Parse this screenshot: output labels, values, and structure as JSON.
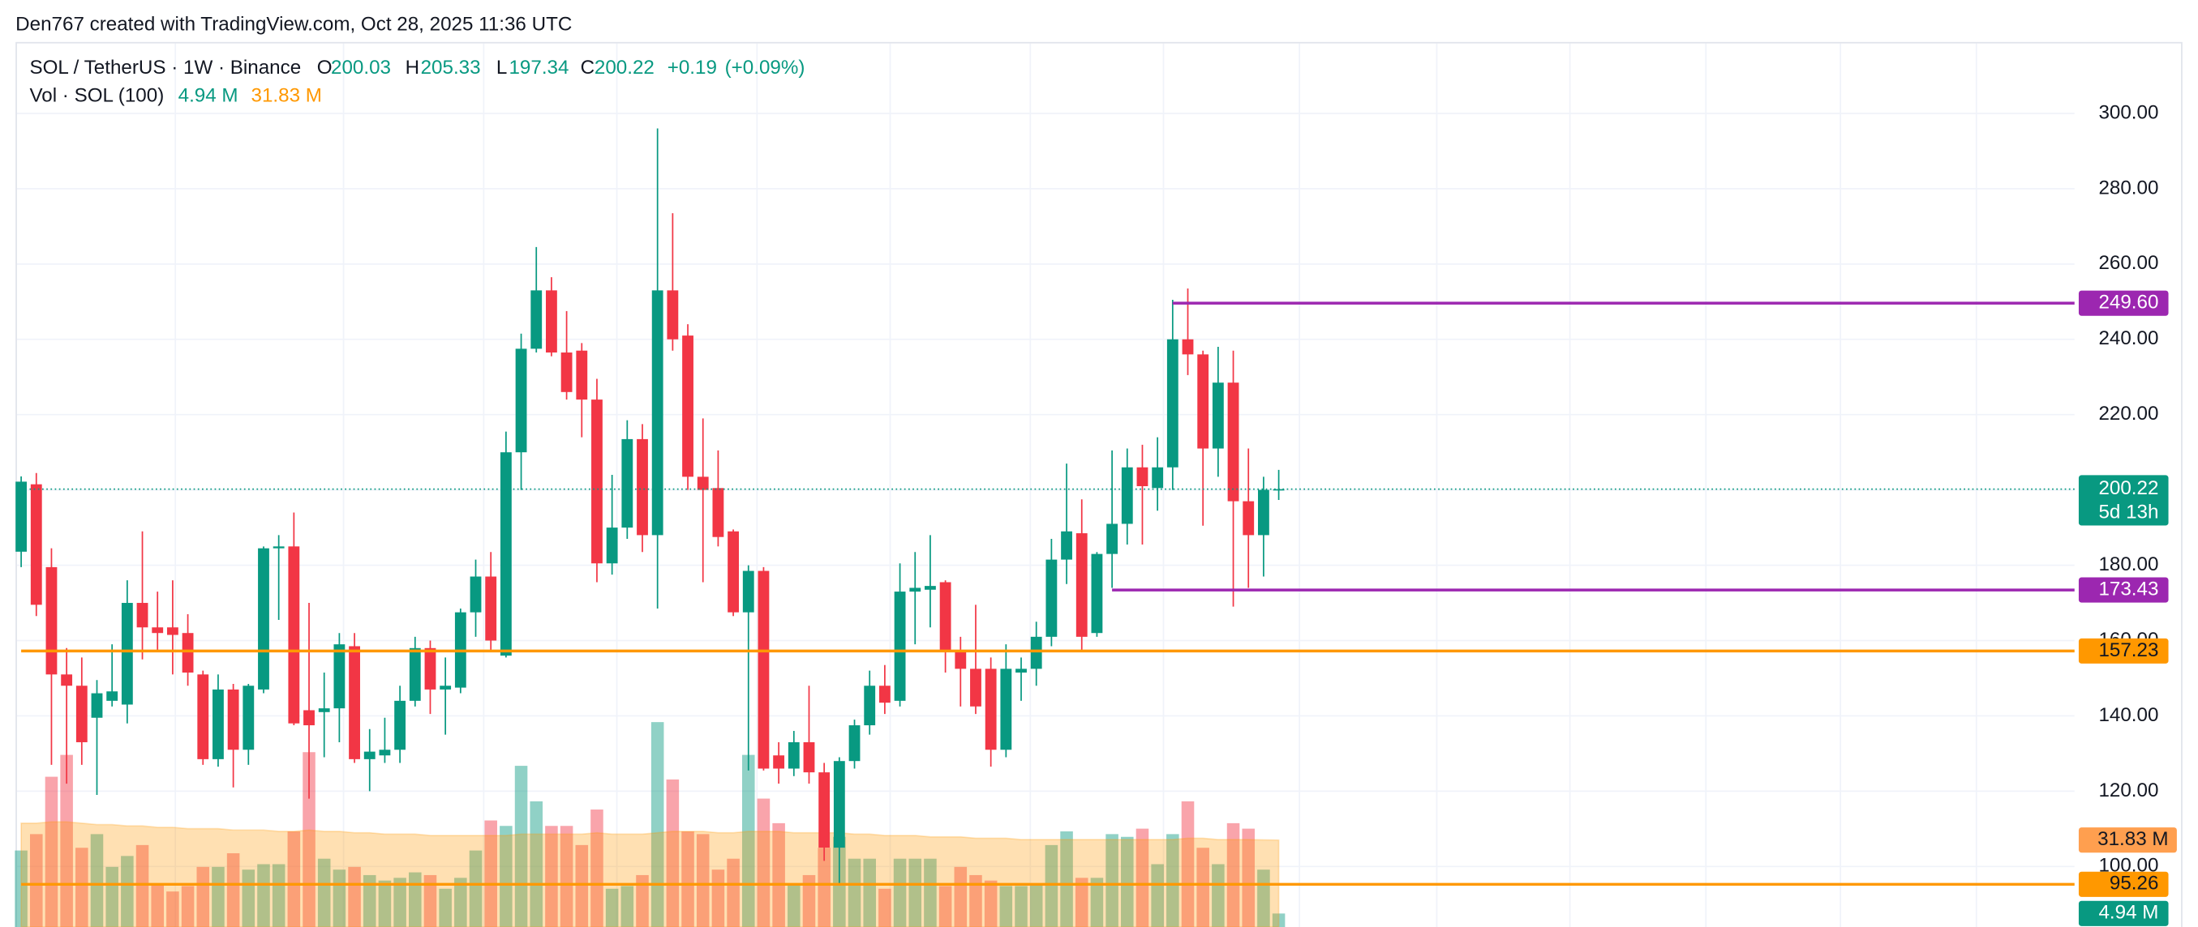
{
  "header": {
    "attribution": "Den767 created with TradingView.com, Oct 28, 2025 11:36 UTC"
  },
  "chart_data": {
    "type": "candlestick",
    "symbol": "SOL / TetherUS · 1W · Binance",
    "legend_fields": [
      {
        "name": "O",
        "value": 200.03
      },
      {
        "name": "H",
        "value": 205.33
      },
      {
        "name": "L",
        "value": 197.34
      },
      {
        "name": "C",
        "value": 200.22
      }
    ],
    "change": {
      "value": 0.19,
      "label": "+0.19"
    },
    "change_pct": {
      "value": 0.09,
      "label": "(+0.09%)"
    },
    "up_color": "#089981",
    "down_color": "#f23645",
    "open": [
      183.6,
      201.5,
      179.5,
      151,
      148,
      139.5,
      144,
      143,
      170,
      163.5,
      163.5,
      162,
      151,
      128.5,
      147,
      131,
      147,
      184.5,
      185,
      141.5,
      141,
      142,
      158.5,
      128.5,
      129.5,
      131,
      144,
      158,
      147,
      147.5,
      167.5,
      177,
      156,
      210,
      237.5,
      253,
      236.5,
      237,
      224,
      180.5,
      190,
      213.5,
      188,
      253,
      241,
      203.5,
      200.5,
      189,
      167.5,
      178.5,
      129.5,
      126,
      133,
      125,
      105,
      128,
      137.5,
      148,
      144,
      173,
      173.5,
      175.5,
      157.5,
      152.5,
      152.5,
      131,
      151.5,
      152.5,
      161,
      181.5,
      188.5,
      162,
      183,
      191,
      206,
      200.5,
      206,
      240,
      236,
      211,
      228.5,
      197,
      188,
      200.03
    ],
    "high": [
      203.6,
      204.5,
      184.5,
      158,
      155.5,
      149.5,
      159,
      176,
      189,
      173,
      176,
      167,
      152,
      151,
      148.5,
      148.5,
      185,
      188,
      194,
      170,
      151.5,
      162,
      162,
      136.5,
      139.5,
      148,
      161,
      160,
      155.5,
      168.5,
      181.5,
      183.5,
      215.5,
      241.5,
      264.5,
      256.5,
      247.5,
      239,
      229.5,
      204,
      218.5,
      217.5,
      296,
      273.5,
      244,
      219,
      210.5,
      189.5,
      180,
      179.5,
      133,
      136,
      148,
      127.5,
      129,
      139,
      152,
      153.5,
      180.5,
      183.5,
      188,
      176,
      161,
      169.5,
      155.5,
      159,
      155.5,
      165,
      187,
      207,
      197.5,
      183.5,
      210.5,
      211,
      212,
      214,
      250.5,
      253.5,
      237,
      238,
      237,
      211,
      203.5,
      205.33
    ],
    "low": [
      179.5,
      166.5,
      127,
      122,
      127,
      119,
      142.5,
      138,
      155,
      157,
      151,
      148,
      127,
      126.5,
      121,
      127,
      146,
      165.5,
      137.5,
      118,
      129,
      133,
      127.5,
      120,
      127.5,
      127.5,
      142.5,
      140.5,
      135,
      146,
      161,
      157.5,
      155.5,
      200,
      236.5,
      235.5,
      224,
      214,
      175.5,
      177.5,
      187,
      183.5,
      168.5,
      237,
      200,
      175.5,
      185,
      166.5,
      125.5,
      125.5,
      122,
      124,
      122,
      101.5,
      95,
      126,
      135,
      140.5,
      142.5,
      159,
      163.5,
      151.5,
      142.5,
      140.5,
      126.5,
      129,
      144,
      148,
      158.5,
      175,
      157.5,
      161,
      174,
      185.5,
      185.5,
      194.5,
      200,
      230.5,
      190.5,
      203.5,
      169,
      174,
      177,
      197.34
    ],
    "close": [
      202.2,
      169.5,
      151,
      148,
      133,
      146,
      146.5,
      170,
      163.5,
      162,
      161.5,
      151.5,
      128.5,
      147,
      131,
      148,
      184.5,
      185,
      138,
      137.5,
      142,
      159,
      128.5,
      130.5,
      131,
      144,
      158,
      147,
      148,
      167.5,
      177,
      160,
      210,
      237.5,
      253,
      236.5,
      226,
      224,
      180.5,
      190,
      213.5,
      188,
      253,
      240,
      203.5,
      200,
      187.5,
      167.5,
      178.5,
      126,
      126,
      133,
      125,
      105,
      128,
      137.5,
      148,
      143.5,
      173,
      174,
      174.5,
      157.5,
      152.5,
      142.5,
      131,
      152.5,
      152.5,
      161,
      181.5,
      189,
      161,
      183,
      191,
      206,
      201,
      206,
      240,
      236,
      211,
      228.5,
      197,
      188,
      200.03,
      200.22
    ],
    "ylim": [
      84,
      319
    ],
    "yticks": [
      {
        "value": 100,
        "label": "100.00"
      },
      {
        "value": 120,
        "label": "120.00"
      },
      {
        "value": 140,
        "label": "140.00"
      },
      {
        "value": 160,
        "label": "160.00"
      },
      {
        "value": 180,
        "label": "180.00"
      },
      {
        "value": 200,
        "label": "200.00"
      },
      {
        "value": 220,
        "label": "220.00"
      },
      {
        "value": 240,
        "label": "240.00"
      },
      {
        "value": 260,
        "label": "260.00"
      },
      {
        "value": 280,
        "label": "280.00"
      },
      {
        "value": 300,
        "label": "300.00"
      }
    ],
    "grid": true,
    "levels": [
      {
        "value": 249.6,
        "label": "249.60",
        "color": "#9c27b0",
        "start": 76
      },
      {
        "value": 173.43,
        "label": "173.43",
        "color": "#9c27b0",
        "start": 72
      },
      {
        "value": 157.23,
        "label": "157.23",
        "color": "#ff9800",
        "start": 0
      },
      {
        "value": 95.26,
        "label": "95.26",
        "color": "#ff9800",
        "start": 0
      }
    ],
    "last_price": {
      "value": 200.22,
      "label": "200.22",
      "countdown": "5d 13h"
    },
    "volume": {
      "name": "Vol · SOL (100)",
      "values": [
        28,
        34,
        55,
        63,
        29,
        34,
        22,
        26,
        30,
        16,
        13,
        15,
        22,
        22,
        27,
        21,
        23,
        23,
        35,
        64,
        25,
        21,
        22,
        19,
        17,
        18,
        20,
        19,
        14,
        18,
        28,
        39,
        37,
        59,
        46,
        37,
        37,
        30,
        43,
        14,
        15,
        19,
        75,
        54,
        35,
        34,
        21,
        25,
        63,
        47,
        38,
        16,
        19,
        29,
        33,
        25,
        25,
        14,
        25,
        25,
        25,
        15,
        22,
        19,
        17,
        15,
        15,
        16,
        30,
        35,
        18,
        18,
        34,
        33,
        36,
        23,
        34,
        46,
        29,
        23,
        38,
        36,
        21,
        4.94
      ],
      "ma": [
        38,
        38,
        38.5,
        38.5,
        38,
        37.5,
        37.5,
        37,
        37,
        36.5,
        36.5,
        36,
        36,
        36,
        35.5,
        35.5,
        35.5,
        35,
        35,
        35.5,
        35,
        35,
        34.5,
        34.5,
        34,
        34,
        34,
        33.5,
        33.5,
        33.5,
        33.5,
        33.5,
        33.5,
        34,
        34,
        34,
        34,
        34,
        34.5,
        34,
        34,
        34,
        34.5,
        35,
        35,
        35,
        34.5,
        34.5,
        35,
        35,
        35,
        34.5,
        34.5,
        34.5,
        34.5,
        34,
        34,
        33.5,
        33.5,
        33.5,
        33,
        33,
        33,
        32.5,
        32.5,
        32.5,
        32,
        32,
        32,
        32,
        32,
        32,
        32,
        32,
        32,
        32,
        32,
        32.5,
        32.5,
        32,
        32,
        32,
        31.9,
        31.83
      ],
      "ylim": [
        0,
        324
      ],
      "last": {
        "value": 4.94,
        "label": "4.94 M"
      },
      "ma_last": {
        "value": 31.83,
        "label": "31.83 M"
      },
      "color": "#089981",
      "ma_color": "#ff9800"
    }
  }
}
